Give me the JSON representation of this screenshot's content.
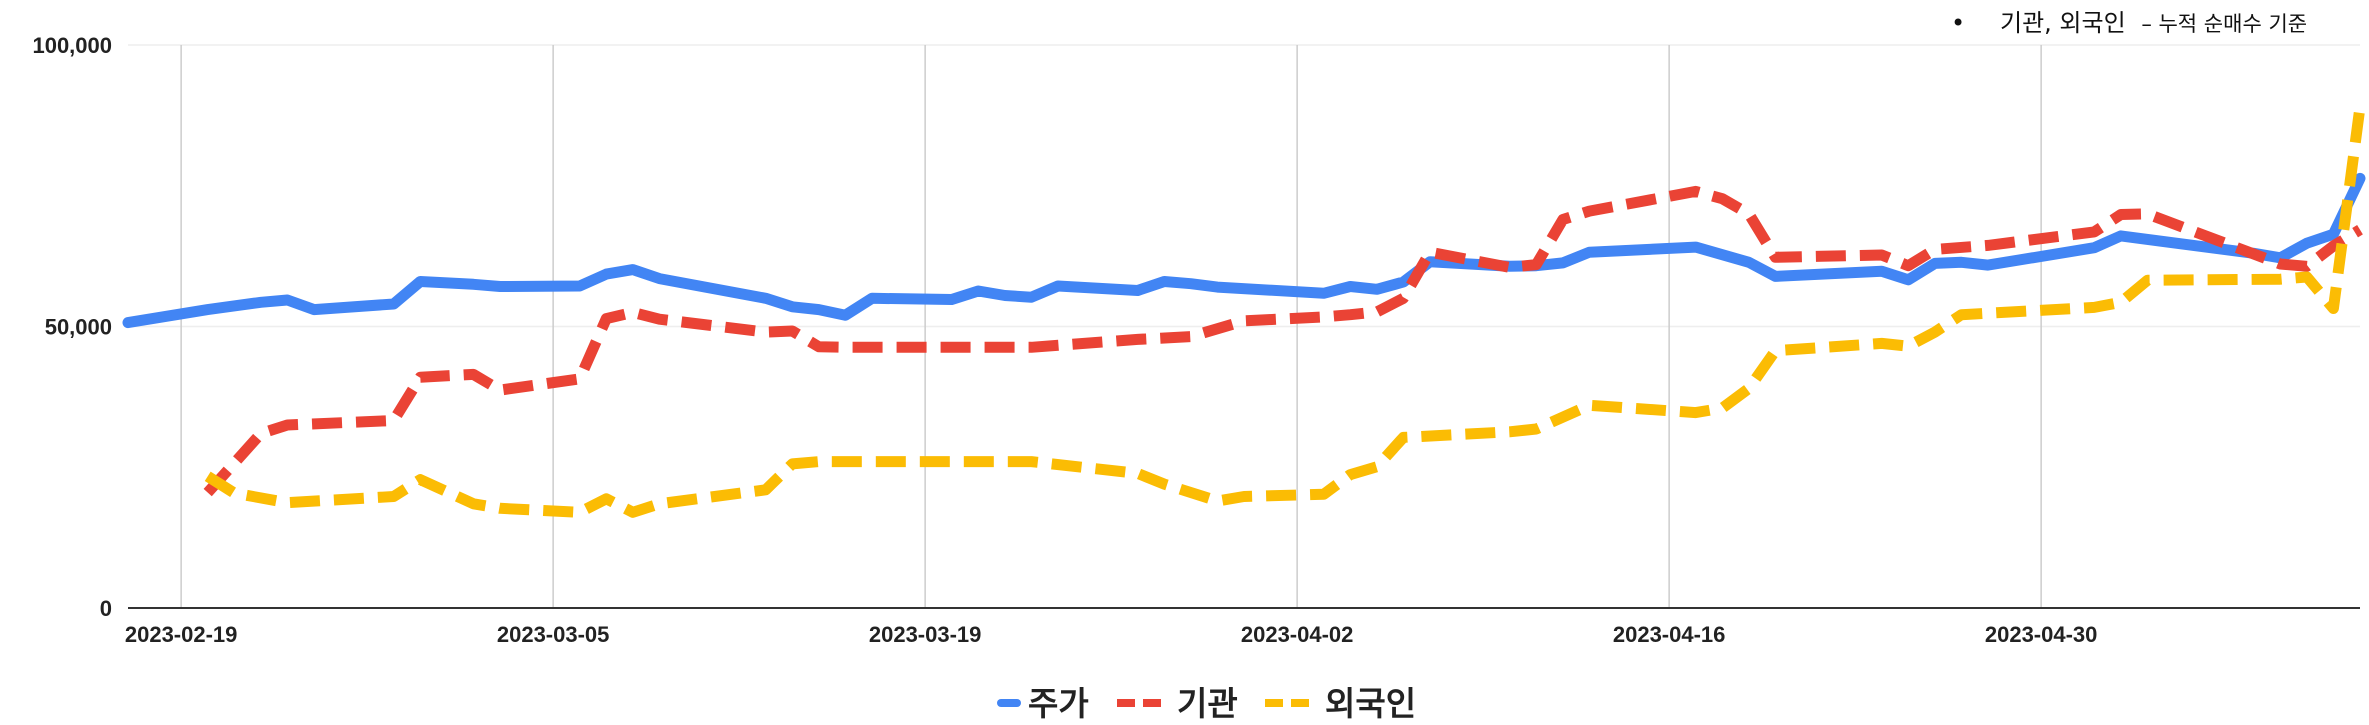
{
  "chart_data": {
    "type": "line",
    "title": "",
    "xlabel": "",
    "ylabel": "",
    "annotation": {
      "bullet": "•",
      "main": "기관, 외국인",
      "sub": "– 누적 순매수 기준"
    },
    "x_ticks": [
      "2023-02-19",
      "2023-03-05",
      "2023-03-19",
      "2023-04-02",
      "2023-04-16",
      "2023-04-30"
    ],
    "x_range": [
      "2023-02-17",
      "2023-05-12"
    ],
    "y_ticks": [
      "0",
      "50,000",
      "100,000"
    ],
    "y_tick_values": [
      0,
      50000,
      100000
    ],
    "ylim": [
      0,
      100000
    ],
    "grid": true,
    "legend_position": "bottom",
    "series": [
      {
        "name": "주가",
        "color": "#4285F4",
        "style": "solid",
        "x": [
          "2023-02-17",
          "2023-02-20",
          "2023-02-22",
          "2023-02-23",
          "2023-02-24",
          "2023-02-27",
          "2023-02-28",
          "2023-03-02",
          "2023-03-03",
          "2023-03-06",
          "2023-03-07",
          "2023-03-08",
          "2023-03-09",
          "2023-03-13",
          "2023-03-14",
          "2023-03-15",
          "2023-03-16",
          "2023-03-17",
          "2023-03-20",
          "2023-03-21",
          "2023-03-22",
          "2023-03-23",
          "2023-03-24",
          "2023-03-27",
          "2023-03-28",
          "2023-03-29",
          "2023-03-30",
          "2023-04-03",
          "2023-04-04",
          "2023-04-05",
          "2023-04-06",
          "2023-04-07",
          "2023-04-10",
          "2023-04-11",
          "2023-04-12",
          "2023-04-13",
          "2023-04-17",
          "2023-04-19",
          "2023-04-20",
          "2023-04-24",
          "2023-04-25",
          "2023-04-26",
          "2023-04-27",
          "2023-04-28",
          "2023-05-02",
          "2023-05-03",
          "2023-05-08",
          "2023-05-09",
          "2023-05-10",
          "2023-05-11",
          "2023-05-12"
        ],
        "values": [
          50700,
          53000,
          54300,
          54700,
          53000,
          54000,
          58000,
          57500,
          57100,
          57200,
          59300,
          60100,
          58500,
          55000,
          53500,
          53000,
          52000,
          55000,
          54800,
          56300,
          55500,
          55200,
          57200,
          56400,
          58000,
          57600,
          57000,
          55900,
          57100,
          56600,
          57900,
          61500,
          60700,
          60800,
          61300,
          63200,
          64100,
          61400,
          58900,
          59800,
          58300,
          61200,
          61400,
          60900,
          64000,
          66100,
          63000,
          62200,
          64800,
          66400,
          76300
        ]
      },
      {
        "name": "기관",
        "color": "#EA4335",
        "style": "dashed",
        "x": [
          "2023-02-20",
          "2023-02-22",
          "2023-02-23",
          "2023-02-27",
          "2023-02-28",
          "2023-03-02",
          "2023-03-03",
          "2023-03-06",
          "2023-03-07",
          "2023-03-08",
          "2023-03-09",
          "2023-03-13",
          "2023-03-14",
          "2023-03-15",
          "2023-03-16",
          "2023-03-20",
          "2023-03-23",
          "2023-03-27",
          "2023-03-29",
          "2023-03-31",
          "2023-04-03",
          "2023-04-04",
          "2023-04-05",
          "2023-04-06",
          "2023-04-07",
          "2023-04-10",
          "2023-04-11",
          "2023-04-12",
          "2023-04-13",
          "2023-04-17",
          "2023-04-18",
          "2023-04-19",
          "2023-04-20",
          "2023-04-24",
          "2023-04-25",
          "2023-04-26",
          "2023-04-28",
          "2023-05-02",
          "2023-05-03",
          "2023-05-04",
          "2023-05-09",
          "2023-05-10",
          "2023-05-11",
          "2023-05-12"
        ],
        "values": [
          20500,
          31000,
          32500,
          33300,
          41000,
          41500,
          38700,
          40700,
          51400,
          52500,
          51300,
          49000,
          49200,
          46400,
          46300,
          46300,
          46300,
          47700,
          48200,
          51000,
          51700,
          52100,
          52600,
          55000,
          63200,
          60500,
          61000,
          69000,
          70500,
          74000,
          72700,
          70000,
          62300,
          62700,
          60800,
          63700,
          64400,
          66800,
          69900,
          70000,
          61100,
          60700,
          64300,
          67200
        ]
      },
      {
        "name": "외국인",
        "color": "#FBBC04",
        "style": "dashed",
        "x": [
          "2023-02-20",
          "2023-02-21",
          "2023-02-23",
          "2023-02-27",
          "2023-02-28",
          "2023-03-02",
          "2023-03-03",
          "2023-03-06",
          "2023-03-07",
          "2023-03-08",
          "2023-03-09",
          "2023-03-13",
          "2023-03-14",
          "2023-03-15",
          "2023-03-21",
          "2023-03-23",
          "2023-03-27",
          "2023-03-28",
          "2023-03-30",
          "2023-03-31",
          "2023-04-03",
          "2023-04-04",
          "2023-04-05",
          "2023-04-06",
          "2023-04-10",
          "2023-04-11",
          "2023-04-13",
          "2023-04-17",
          "2023-04-18",
          "2023-04-19",
          "2023-04-20",
          "2023-04-24",
          "2023-04-25",
          "2023-04-26",
          "2023-04-27",
          "2023-05-02",
          "2023-05-03",
          "2023-05-04",
          "2023-05-09",
          "2023-05-10",
          "2023-05-11",
          "2023-05-12"
        ],
        "values": [
          23400,
          20400,
          18700,
          19800,
          22800,
          18500,
          17700,
          17000,
          19400,
          17000,
          18500,
          21000,
          25600,
          26000,
          26000,
          26000,
          23900,
          22000,
          19000,
          19800,
          20200,
          23700,
          25100,
          30300,
          31300,
          31800,
          36000,
          34700,
          35500,
          39000,
          45700,
          47000,
          46500,
          49000,
          52100,
          53400,
          54300,
          58200,
          58400,
          58800,
          53200,
          89000
        ]
      }
    ]
  }
}
